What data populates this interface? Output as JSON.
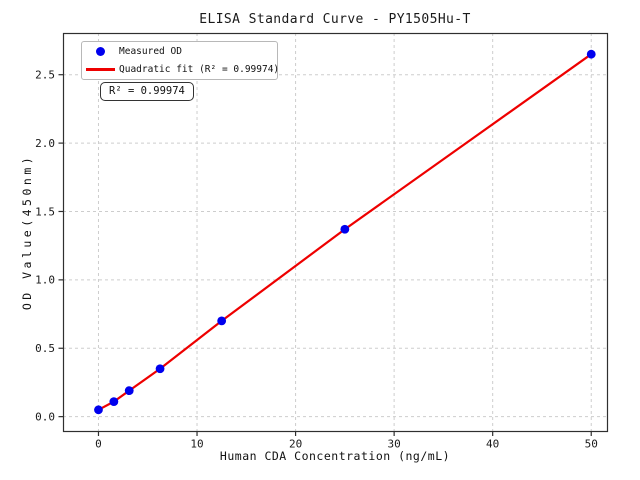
{
  "figure_title": "ELISA Standard Curve - PY1505Hu-T",
  "legend": {
    "measured_label": "Measured OD",
    "fit_label": "Quadratic fit (R² = 0.99974)"
  },
  "annotation_text": "R² = 0.99974",
  "chart_data": {
    "type": "scatter",
    "title": "ELISA Standard Curve - PY1505Hu-T",
    "xlabel": "Human CDA Concentration (ng/mL)",
    "ylabel": "OD Value(450nm)",
    "xlim": [
      -3.6,
      51.6
    ],
    "ylim": [
      -0.105,
      2.805
    ],
    "xticks": [
      0,
      10,
      20,
      30,
      40,
      50
    ],
    "xtick_labels": [
      "0",
      "10",
      "20",
      "30",
      "40",
      "50"
    ],
    "yticks": [
      0.0,
      0.5,
      1.0,
      1.5,
      2.0,
      2.5
    ],
    "ytick_labels": [
      "0.0",
      "0.5",
      "1.0",
      "1.5",
      "2.0",
      "2.5"
    ],
    "grid": true,
    "grid_color": "#cdcdcd",
    "spine_color": "#2f2f2f",
    "legend_position": "upper left",
    "annotation": "R² = 0.99974",
    "series": [
      {
        "name": "Measured OD",
        "type": "scatter",
        "color": "#0000ee",
        "x": [
          0,
          1.56,
          3.12,
          6.25,
          12.5,
          25,
          50
        ],
        "y": [
          0.05,
          0.11,
          0.19,
          0.35,
          0.7,
          1.37,
          2.65
        ]
      },
      {
        "name": "Quadratic fit (R² = 0.99974)",
        "type": "line",
        "color": "#ee0000",
        "x": [
          0,
          1.56,
          3.12,
          6.25,
          12.5,
          25,
          50
        ],
        "y": [
          0.05,
          0.11,
          0.19,
          0.35,
          0.7,
          1.37,
          2.65
        ]
      }
    ]
  }
}
